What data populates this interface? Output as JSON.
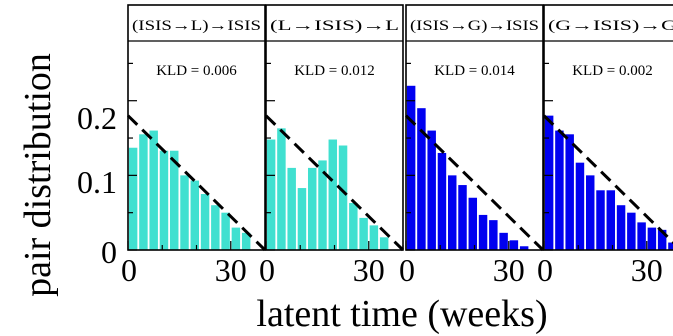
{
  "figure": {
    "ylabel": "pair distribution",
    "xlabel": "latent time (weeks)",
    "y_ticks": [
      "0",
      "0.1",
      "0.2"
    ],
    "x_ticks": [
      "0",
      "30"
    ]
  },
  "colors": {
    "cyan": "#40E0D0",
    "blue": "#0000F0",
    "frame": "#000000"
  },
  "chart_data": [
    {
      "type": "bar",
      "title": "(ISIS→L)→ISIS",
      "annotation": "KLD = 0.006",
      "color": "#40E0D0",
      "xlabel": "latent time (weeks)",
      "ylabel": "pair distribution",
      "xlim": [
        0,
        40
      ],
      "ylim": [
        0,
        0.28
      ],
      "bin_width_weeks": 3,
      "x": [
        1.5,
        4.5,
        7.5,
        10.5,
        13.5,
        16.5,
        19.5,
        22.5,
        25.5,
        28.5,
        31.5,
        34.5,
        37.5
      ],
      "values": [
        0.137,
        0.155,
        0.16,
        0.133,
        0.133,
        0.1,
        0.093,
        0.075,
        0.06,
        0.05,
        0.03,
        0.023,
        0.0
      ],
      "fit_line": {
        "x": [
          0,
          40
        ],
        "y": [
          0.18,
          0.0
        ]
      }
    },
    {
      "type": "bar",
      "title": "(L→ISIS)→L",
      "annotation": "KLD = 0.012",
      "color": "#40E0D0",
      "xlabel": "latent time (weeks)",
      "ylabel": "pair distribution",
      "xlim": [
        0,
        40
      ],
      "ylim": [
        0,
        0.28
      ],
      "bin_width_weeks": 3,
      "x": [
        1.5,
        4.5,
        7.5,
        10.5,
        13.5,
        16.5,
        19.5,
        22.5,
        25.5,
        28.5,
        31.5,
        34.5,
        37.5
      ],
      "values": [
        0.148,
        0.163,
        0.11,
        0.083,
        0.11,
        0.12,
        0.148,
        0.14,
        0.063,
        0.043,
        0.033,
        0.017,
        0.0
      ],
      "fit_line": {
        "x": [
          0,
          40
        ],
        "y": [
          0.18,
          0.0
        ]
      }
    },
    {
      "type": "bar",
      "title": "(ISIS→G)→ISIS",
      "annotation": "KLD = 0.014",
      "color": "#0000F0",
      "xlabel": "latent time (weeks)",
      "ylabel": "pair distribution",
      "xlim": [
        0,
        40
      ],
      "ylim": [
        0,
        0.28
      ],
      "bin_width_weeks": 3,
      "x": [
        1.5,
        4.5,
        7.5,
        10.5,
        13.5,
        16.5,
        19.5,
        22.5,
        25.5,
        28.5,
        31.5,
        34.5,
        37.5
      ],
      "values": [
        0.22,
        0.19,
        0.16,
        0.13,
        0.1,
        0.087,
        0.07,
        0.047,
        0.04,
        0.023,
        0.013,
        0.005,
        0.0
      ],
      "fit_line": {
        "x": [
          0,
          40
        ],
        "y": [
          0.18,
          0.0
        ]
      }
    },
    {
      "type": "bar",
      "title": "(G→ISIS)→G",
      "annotation": "KLD = 0.002",
      "color": "#0000F0",
      "xlabel": "latent time (weeks)",
      "ylabel": "pair distribution",
      "xlim": [
        0,
        40
      ],
      "ylim": [
        0,
        0.28
      ],
      "bin_width_weeks": 3,
      "x": [
        1.5,
        4.5,
        7.5,
        10.5,
        13.5,
        16.5,
        19.5,
        22.5,
        25.5,
        28.5,
        31.5,
        34.5,
        37.5
      ],
      "values": [
        0.18,
        0.16,
        0.155,
        0.117,
        0.1,
        0.08,
        0.08,
        0.06,
        0.05,
        0.037,
        0.03,
        0.027,
        0.01
      ],
      "fit_line": {
        "x": [
          0,
          40
        ],
        "y": [
          0.18,
          0.0
        ]
      }
    }
  ]
}
